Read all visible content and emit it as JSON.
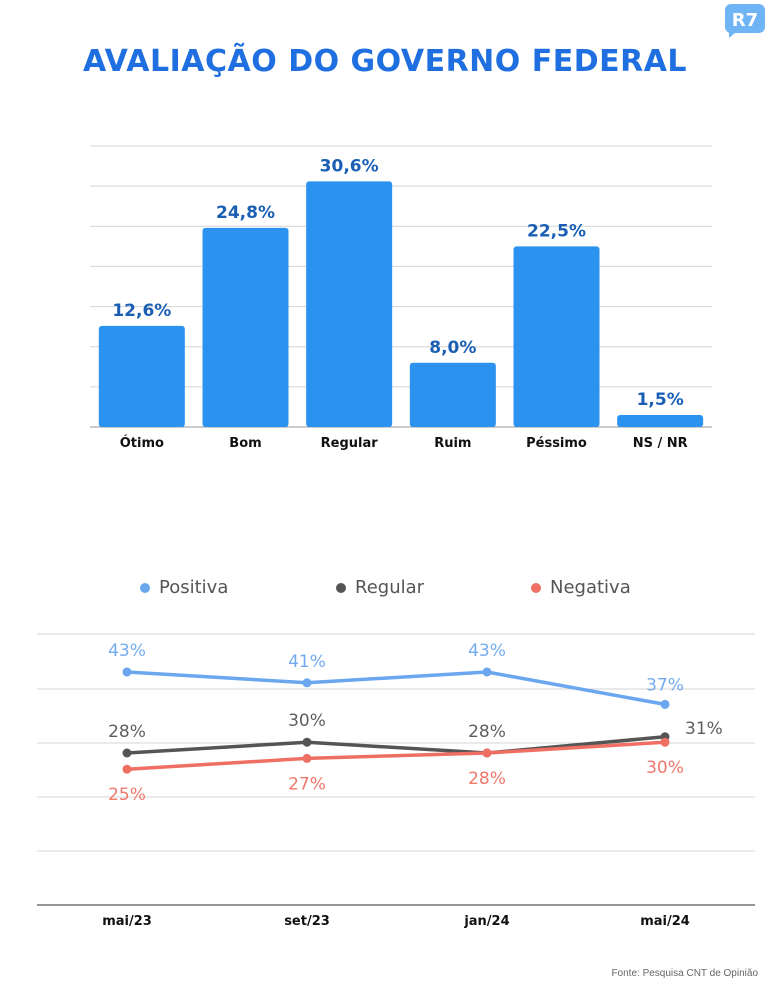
{
  "title": "AVALIAÇÃO DO GOVERNO FEDERAL",
  "logo_text": "R7",
  "source": "Fonte: Pesquisa CNT de Opinião",
  "colors": {
    "title": "#1f6fe0",
    "bar": "#2b92ef",
    "bar_label": "#1a5fb4",
    "positiva": "#6aa7ee",
    "regular": "#555555",
    "negativa": "#ef7063",
    "logo": "#6fb4f5"
  },
  "chart_data": [
    {
      "type": "bar",
      "categories": [
        "Ótimo",
        "Bom",
        "Regular",
        "Ruim",
        "Péssimo",
        "NS / NR"
      ],
      "values": [
        12.6,
        24.8,
        30.6,
        8.0,
        22.5,
        1.5
      ],
      "value_labels": [
        "12,6%",
        "24,8%",
        "30,6%",
        "8,0%",
        "22,5%",
        "1,5%"
      ],
      "ylim": [
        0,
        35
      ],
      "grid": true
    },
    {
      "type": "line",
      "categories": [
        "mai/23",
        "set/23",
        "jan/24",
        "mai/24"
      ],
      "legend_position": "top",
      "grid": true,
      "ylim": [
        10,
        50
      ],
      "series": [
        {
          "name": "Positiva",
          "key": "positiva",
          "values": [
            43,
            41,
            43,
            37
          ],
          "labels": [
            "43%",
            "41%",
            "43%",
            "37%"
          ],
          "label_pos": "above"
        },
        {
          "name": "Regular",
          "key": "regular",
          "values": [
            28,
            30,
            28,
            31
          ],
          "labels": [
            "28%",
            "30%",
            "28%",
            "31%"
          ],
          "label_pos": "above"
        },
        {
          "name": "Negativa",
          "key": "negativa",
          "values": [
            25,
            27,
            28,
            30
          ],
          "labels": [
            "25%",
            "27%",
            "28%",
            "30%"
          ],
          "label_pos": "below"
        }
      ]
    }
  ]
}
